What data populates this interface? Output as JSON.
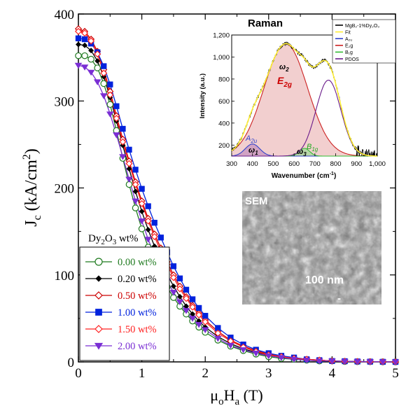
{
  "chart_data": [
    {
      "type": "line",
      "xlabel_parts": [
        "μ",
        "o",
        "H",
        "a",
        " (T)"
      ],
      "ylabel_parts": [
        "J",
        "c",
        " (kA/cm",
        "2",
        ")"
      ],
      "xlim": [
        0,
        5
      ],
      "ylim": [
        0,
        400
      ],
      "xticks": [
        "0",
        "1",
        "2",
        "3",
        "4",
        "5"
      ],
      "yticks": [
        "0",
        "100",
        "200",
        "300",
        "400"
      ],
      "legend": {
        "title_parts": [
          "Dy",
          "2",
          "O",
          "3",
          " wt%"
        ],
        "placement": "left-middle"
      },
      "x": [
        0.0,
        0.1,
        0.2,
        0.3,
        0.4,
        0.5,
        0.6,
        0.7,
        0.8,
        0.9,
        1.0,
        1.1,
        1.2,
        1.3,
        1.4,
        1.5,
        1.6,
        1.7,
        1.8,
        1.9,
        2.0,
        2.2,
        2.4,
        2.6,
        2.8,
        3.0,
        3.2,
        3.4,
        3.6,
        3.8,
        4.0,
        4.2,
        4.4,
        4.6,
        4.8,
        5.0
      ],
      "series": [
        {
          "name": "0.00 wt%",
          "color": "#1f7a1f",
          "marker": "circle-open",
          "values": [
            352,
            352,
            348,
            338,
            320,
            296,
            266,
            234,
            204,
            177,
            153,
            132,
            114,
            99,
            86,
            74,
            64,
            55,
            47,
            40,
            34,
            25,
            18,
            13,
            9,
            6,
            4,
            3,
            2,
            1,
            1,
            0.5,
            0.3,
            0.2,
            0.1,
            0
          ]
        },
        {
          "name": "0.20 wt%",
          "color": "#000000",
          "marker": "diamond-filled",
          "values": [
            365,
            364,
            358,
            346,
            328,
            304,
            277,
            249,
            222,
            196,
            173,
            152,
            133,
            116,
            101,
            87,
            75,
            64,
            55,
            47,
            40,
            29,
            21,
            15,
            11,
            8,
            5,
            4,
            3,
            2,
            1,
            0.6,
            0.4,
            0.2,
            0.1,
            0
          ]
        },
        {
          "name": "0.50 wt%",
          "color": "#cc0000",
          "marker": "diamond-open",
          "values": [
            383,
            380,
            371,
            357,
            336,
            311,
            283,
            256,
            231,
            207,
            185,
            165,
            147,
            131,
            115,
            100,
            87,
            75,
            65,
            56,
            48,
            35,
            25,
            18,
            13,
            9,
            6,
            4,
            3,
            2,
            1,
            0.7,
            0.4,
            0.3,
            0.1,
            0
          ]
        },
        {
          "name": "1.00 wt%",
          "color": "#0022dd",
          "marker": "square-filled",
          "values": [
            372,
            371,
            366,
            356,
            340,
            319,
            294,
            268,
            244,
            221,
            199,
            179,
            160,
            143,
            126,
            110,
            96,
            83,
            72,
            62,
            53,
            39,
            28,
            20,
            14,
            10,
            7,
            5,
            3,
            2,
            1,
            0.8,
            0.5,
            0.3,
            0.1,
            0
          ]
        },
        {
          "name": "1.50 wt%",
          "color": "#ff2222",
          "marker": "diamond-open",
          "values": [
            380,
            378,
            369,
            354,
            332,
            307,
            280,
            253,
            228,
            204,
            182,
            162,
            144,
            127,
            112,
            97,
            84,
            73,
            63,
            54,
            46,
            33,
            24,
            17,
            12,
            8,
            6,
            4,
            3,
            2,
            1,
            0.6,
            0.4,
            0.2,
            0.1,
            0
          ]
        },
        {
          "name": "2.00 wt%",
          "color": "#7a2fd4",
          "marker": "triangle-down",
          "values": [
            341,
            339,
            333,
            322,
            306,
            285,
            261,
            236,
            210,
            185,
            162,
            141,
            123,
            107,
            93,
            80,
            69,
            59,
            50,
            43,
            37,
            27,
            19,
            14,
            10,
            7,
            5,
            3,
            2,
            1,
            1,
            0.5,
            0.3,
            0.2,
            0.1,
            0
          ]
        }
      ]
    },
    {
      "type": "area",
      "title": "Raman",
      "xlabel": "Wavenumber (cm",
      "xlabel_sup": "-1",
      "xlabel_close": ")",
      "ylabel": "Intensity (a.u.)",
      "xlim": [
        300,
        1000
      ],
      "ylim": [
        100,
        1200
      ],
      "xticks": [
        "300",
        "400",
        "500",
        "600",
        "700",
        "800",
        "900",
        "1,000"
      ],
      "yticks": [
        "200",
        "400",
        "600",
        "800",
        "1,000",
        "1,200"
      ],
      "legend": {
        "placement": "top-right",
        "entries": [
          {
            "label": "MgB₂-1%Dy₂O₃",
            "color": "#000000"
          },
          {
            "label": "Fit",
            "color": "#ffee33"
          },
          {
            "label": "A₂ᵤ",
            "color": "#3344cc"
          },
          {
            "label": "E₂g",
            "color": "#cc2222"
          },
          {
            "label": "B₁g",
            "color": "#33bb33"
          },
          {
            "label": "PDOS",
            "color": "#6a1b8a"
          }
        ]
      },
      "peaks": [
        {
          "name": "A₂ᵤ",
          "center": 400,
          "height": 110,
          "width": 35,
          "color": "#3344cc",
          "fill": "#7a4fd0"
        },
        {
          "name": "E₂g",
          "center": 560,
          "height": 1020,
          "width": 105,
          "color": "#cc2222",
          "fill": "#e8a8a8"
        },
        {
          "name": "B₁g",
          "center": 650,
          "height": 70,
          "width": 25,
          "color": "#33bb33",
          "fill": "#88dd88"
        },
        {
          "name": "PDOS",
          "center": 765,
          "height": 690,
          "width": 60,
          "color": "#6a1b8a",
          "fill": "none"
        }
      ],
      "annotations": {
        "a2u_main": "A",
        "a2u_sub": "2u",
        "w1_main": "ω",
        "w1_sub": "1",
        "w2_main": "ω",
        "w2_sub": "2",
        "e2g_main": "E",
        "e2g_sub": "2g",
        "w3_main": "ω",
        "w3_sub": "3",
        "b1g_main": "B",
        "b1g_sub": "1g"
      }
    }
  ],
  "sem_inset": {
    "title": "SEM",
    "scale_label": "100 nm",
    "scale_mark": "-"
  }
}
